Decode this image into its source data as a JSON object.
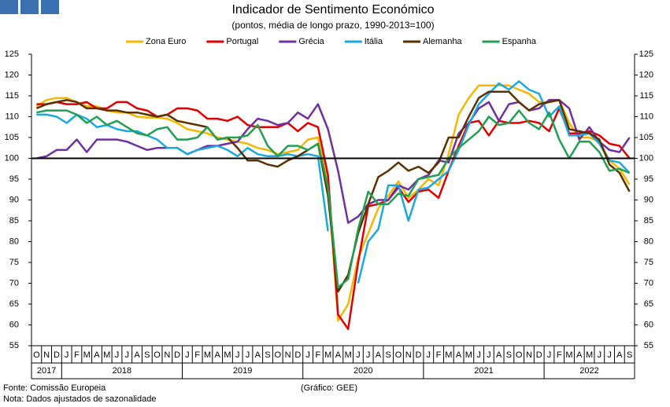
{
  "chart_data": {
    "type": "line",
    "title": "Indicador de Sentimento Económico",
    "subtitle": "(pontos, média de longo prazo, 1990-2013=100)",
    "categories": [
      "O",
      "N",
      "D",
      "J",
      "F",
      "M",
      "A",
      "M",
      "J",
      "J",
      "A",
      "S",
      "O",
      "N",
      "D",
      "J",
      "F",
      "M",
      "A",
      "M",
      "J",
      "J",
      "A",
      "S",
      "O",
      "N",
      "D",
      "J",
      "F",
      "M",
      "A",
      "M",
      "J",
      "J",
      "A",
      "S",
      "O",
      "N",
      "D",
      "J",
      "F",
      "M",
      "A",
      "M",
      "J",
      "J",
      "A",
      "S",
      "O",
      "N",
      "D",
      "J",
      "F",
      "M",
      "A",
      "M",
      "J",
      "J",
      "A",
      "S"
    ],
    "years": [
      "2017",
      "2018",
      "2019",
      "2020",
      "2021",
      "2022"
    ],
    "ylim": [
      55,
      125
    ],
    "yticks": [
      55,
      60,
      65,
      70,
      75,
      80,
      85,
      90,
      95,
      100,
      105,
      110,
      115,
      120,
      125
    ],
    "y2lim": [
      55,
      125
    ],
    "y2ticks": [
      55,
      60,
      65,
      70,
      75,
      80,
      85,
      90,
      95,
      100,
      105,
      110,
      115,
      120,
      125
    ],
    "reference_line": 100,
    "series": [
      {
        "name": "Zona Euro",
        "color": "#f5b800",
        "values": [
          112.5,
          114,
          114.5,
          114.5,
          113.5,
          112.5,
          112.5,
          111.5,
          111,
          111,
          110,
          109.8,
          109.8,
          109.5,
          108.5,
          107,
          106.5,
          106,
          105,
          104.5,
          104,
          103.5,
          102.5,
          102,
          101,
          101.5,
          102,
          104.5,
          105,
          94.5,
          61,
          65,
          76,
          82,
          88,
          91,
          94.5,
          90.5,
          92.5,
          95,
          93.5,
          101,
          110.5,
          114.5,
          117.5,
          117.5,
          117.5,
          117.5,
          116.5,
          115.5,
          113.5,
          113.5,
          114,
          108.5,
          105,
          105,
          104,
          99.5,
          97.5,
          93.7
        ]
      },
      {
        "name": "Portugal",
        "color": "#e00000",
        "values": [
          113,
          113,
          113.5,
          113,
          113,
          113.5,
          112,
          112,
          113.5,
          113.5,
          112,
          111.5,
          110,
          110.5,
          112,
          112,
          111.5,
          109.5,
          109.5,
          109,
          110,
          108,
          107.5,
          107.5,
          107.5,
          108.5,
          106.5,
          108.5,
          107.5,
          96,
          62.5,
          59,
          75,
          88.5,
          89,
          90,
          93,
          89.5,
          92,
          92.5,
          90.5,
          97,
          103,
          108.5,
          109,
          105.5,
          109,
          108.5,
          108.5,
          109,
          108.5,
          106.5,
          112,
          106,
          106,
          106.5,
          105.5,
          103.5,
          103,
          100
        ]
      },
      {
        "name": "Grécia",
        "color": "#7030a0",
        "values": [
          100,
          100.5,
          102,
          102,
          104.5,
          101.5,
          104.5,
          104.5,
          104.5,
          104,
          103,
          102,
          102.5,
          102.5,
          102.5,
          101,
          102,
          103,
          103,
          103.5,
          104,
          107,
          109.5,
          109,
          108,
          108.5,
          111,
          109.5,
          113,
          107,
          97,
          84.5,
          86,
          89,
          90,
          90,
          93.5,
          92.5,
          95,
          96,
          99.5,
          99,
          106,
          108.5,
          112,
          113.5,
          109,
          113,
          113.5,
          111.5,
          112,
          114,
          114,
          112,
          104.5,
          107.5,
          104,
          102,
          101.5,
          105
        ]
      },
      {
        "name": "Itália",
        "color": "#1aa8e0",
        "values": [
          110.5,
          110.5,
          110,
          108.5,
          110.5,
          109.5,
          107.5,
          108,
          107,
          106.5,
          106.5,
          105.5,
          104.5,
          102.5,
          102.5,
          101,
          102,
          102.5,
          103,
          102,
          100.5,
          102.5,
          101,
          100.5,
          100.5,
          101,
          100.5,
          101,
          100.5,
          82.5,
          null,
          null,
          70,
          80,
          83,
          93.5,
          93.5,
          85,
          92.5,
          93,
          95,
          97,
          102,
          108,
          113,
          115.5,
          118,
          116.5,
          118.5,
          116.5,
          115.5,
          110,
          112.5,
          105.5,
          105.5,
          106,
          103.5,
          99.5,
          99,
          96.5
        ]
      },
      {
        "name": "Alemanha",
        "color": "#5a3200",
        "values": [
          112,
          113,
          113.5,
          114,
          113.5,
          112,
          112,
          111.5,
          111.5,
          111,
          111,
          110.5,
          110,
          110.5,
          109,
          108.5,
          108,
          107.5,
          104.5,
          105,
          102.5,
          99.5,
          99.5,
          98.5,
          98,
          99.5,
          100.5,
          102,
          103.5,
          91,
          68,
          72,
          82,
          89,
          95.5,
          97,
          99,
          97,
          98,
          96.5,
          99,
          105,
          105,
          110,
          114.5,
          116,
          116,
          116,
          113.5,
          111.5,
          113,
          113.5,
          114,
          107,
          106.5,
          106,
          104.5,
          98.5,
          96.5,
          92
        ]
      },
      {
        "name": "Espanha",
        "color": "#20a050",
        "values": [
          111,
          111.5,
          111.5,
          111.5,
          110.5,
          108.5,
          110,
          108,
          109,
          107.5,
          106,
          105.5,
          107,
          107.5,
          104.5,
          104.5,
          105,
          107.5,
          104.5,
          105,
          105,
          105.5,
          108,
          103,
          100.5,
          103,
          103,
          102,
          103.5,
          93,
          69,
          71,
          83,
          92,
          89,
          89,
          91.5,
          91,
          95,
          95.5,
          96,
          100,
          102.5,
          104.5,
          106.5,
          110,
          108,
          108.5,
          111.5,
          108.5,
          107,
          111,
          104.5,
          100,
          104,
          104,
          101.5,
          97,
          97.5,
          96.5
        ]
      }
    ],
    "source": "Fonte: Comissão Europeia",
    "note": "Nota: Dados ajustados de sazonalidade",
    "credit": "(Gráfico: GEE)"
  }
}
